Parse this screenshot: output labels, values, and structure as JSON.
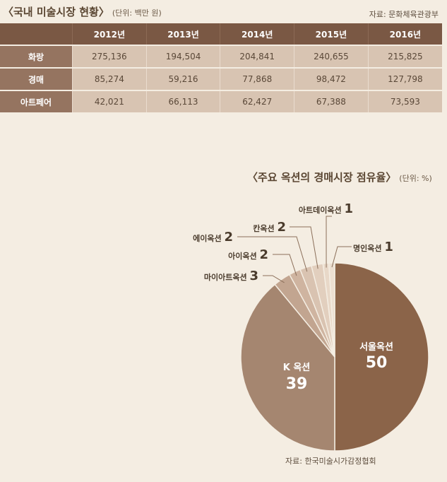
{
  "table": {
    "title": "〈국내 미술시장 현황〉",
    "unit": "(단위: 백만 원)",
    "source": "자료: 문화체육관광부",
    "columns": [
      "",
      "2012년",
      "2013년",
      "2014년",
      "2015년",
      "2016년"
    ],
    "rows": [
      {
        "label": "화랑",
        "values": [
          "275,136",
          "194,504",
          "204,841",
          "240,655",
          "215,825"
        ]
      },
      {
        "label": "경매",
        "values": [
          "85,274",
          "59,216",
          "77,868",
          "98,472",
          "127,798"
        ]
      },
      {
        "label": "아트페어",
        "values": [
          "42,021",
          "66,113",
          "62,427",
          "67,388",
          "73,593"
        ]
      }
    ]
  },
  "chart_data": {
    "type": "pie",
    "title": "〈주요 옥션의 경매시장 점유율〉",
    "unit": "(단위: %)",
    "source": "자료: 한국미술시가감정협회",
    "slices": [
      {
        "label": "서울옥션",
        "value": 50,
        "color": "#8b6449"
      },
      {
        "label": "K 옥션",
        "value": 39,
        "color": "#a58670"
      },
      {
        "label": "마이아트옥션",
        "value": 3,
        "color": "#c2a590"
      },
      {
        "label": "아이옥션",
        "value": 2,
        "color": "#cfb4a0"
      },
      {
        "label": "에이옥션",
        "value": 2,
        "color": "#d9c3b1"
      },
      {
        "label": "칸옥션",
        "value": 2,
        "color": "#e2cfbe"
      },
      {
        "label": "아트데이옥션",
        "value": 1,
        "color": "#e8d8c8"
      },
      {
        "label": "명인옥션",
        "value": 1,
        "color": "#ecdfd1"
      }
    ]
  }
}
